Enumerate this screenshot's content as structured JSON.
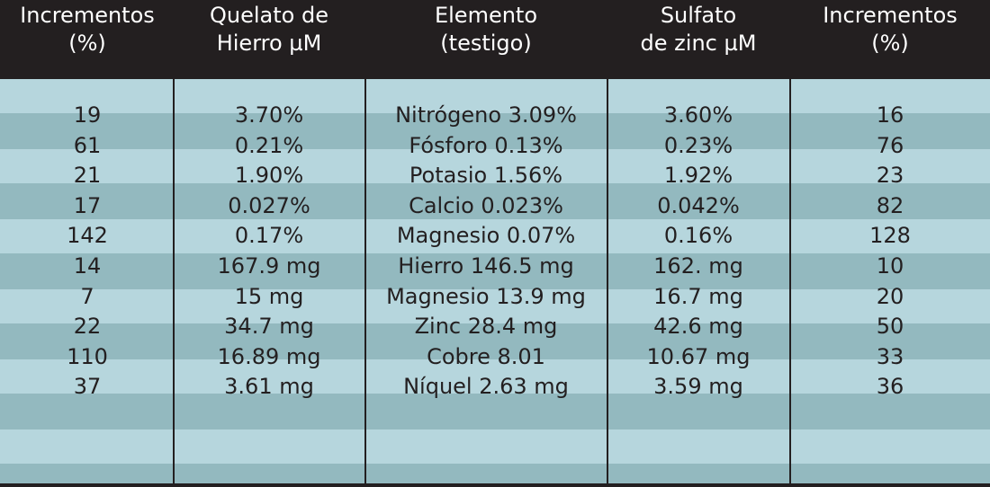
{
  "table": {
    "header": [
      [
        "Incrementos",
        "(%)"
      ],
      [
        "Quelato de",
        "Hierro µM"
      ],
      [
        "Elemento",
        "(testigo)"
      ],
      [
        "Sulfato",
        "de zinc µM"
      ],
      [
        "Incrementos",
        "(%)"
      ]
    ],
    "rows": [
      [
        19,
        "3.70%",
        "Nitrógeno 3.09%",
        "3.60%",
        16
      ],
      [
        61,
        "0.21%",
        "Fósforo 0.13%",
        "0.23%",
        76
      ],
      [
        21,
        "1.90%",
        "Potasio 1.56%",
        "1.92%",
        23
      ],
      [
        17,
        "0.027%",
        "Calcio 0.023%",
        "0.042%",
        82
      ],
      [
        142,
        "0.17%",
        "Magnesio 0.07%",
        "0.16%",
        128
      ],
      [
        14,
        "167.9 mg",
        "Hierro 146.5 mg",
        "162. mg",
        10
      ],
      [
        7,
        "15 mg",
        "Magnesio 13.9 mg",
        "16.7 mg",
        20
      ],
      [
        22,
        "34.7 mg",
        "Zinc 28.4 mg",
        "42.6 mg",
        50
      ],
      [
        110,
        "16.89 mg",
        "Cobre 8.01",
        "10.67 mg",
        33
      ],
      [
        37,
        "3.61 mg",
        "Níquel 2.63 mg",
        "3.59 mg",
        36
      ]
    ]
  }
}
